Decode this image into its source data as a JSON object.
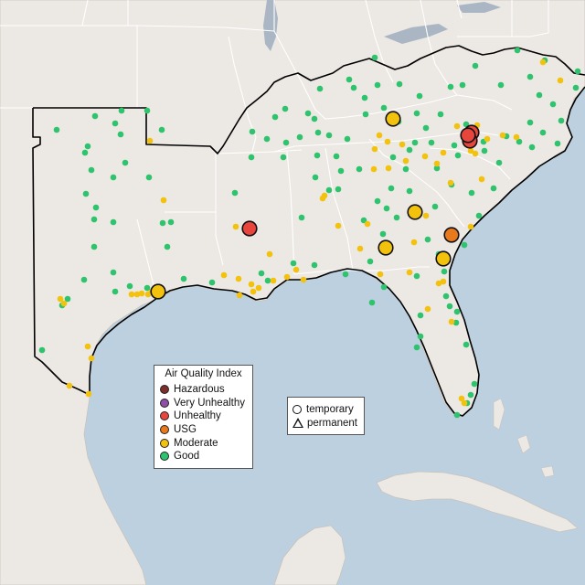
{
  "legend": {
    "title": "Air Quality Index",
    "items": [
      {
        "label": "Hazardous",
        "color": "#7e2e2a"
      },
      {
        "label": "Very Unhealthy",
        "color": "#8e4fa6"
      },
      {
        "label": "Unhealthy",
        "color": "#e8453c"
      },
      {
        "label": "USG",
        "color": "#e8791c"
      },
      {
        "label": "Moderate",
        "color": "#f2c20c"
      },
      {
        "label": "Good",
        "color": "#2ec46e"
      }
    ]
  },
  "monitor_type_legend": {
    "items": [
      {
        "label": "temporary",
        "icon": "circle-icon"
      },
      {
        "label": "permanent",
        "icon": "triangle-icon"
      }
    ]
  },
  "colors": {
    "water": "#bcd0e0",
    "land": "#ece8e3",
    "region_outline": "#000000",
    "state_border": "#ffffff",
    "lake": "#aab6c4"
  }
}
